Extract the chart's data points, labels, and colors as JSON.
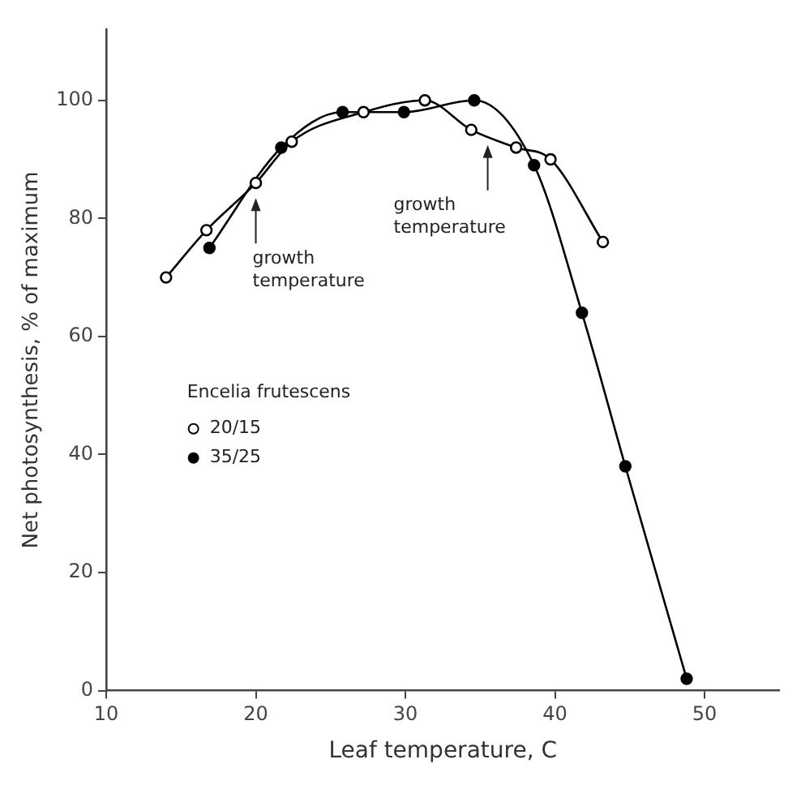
{
  "chart_data": {
    "type": "line",
    "xlabel": "Leaf temperature, C",
    "ylabel": "Net photosynthesis, % of maximum",
    "legend_title": "Encelia frutescens",
    "legend": "left",
    "marker": "circle",
    "grid": false,
    "xlim": [
      10,
      55
    ],
    "xticks": [
      10,
      20,
      30,
      40,
      50
    ],
    "ylim": [
      0,
      112
    ],
    "yticks": [
      0,
      20,
      40,
      60,
      80,
      100
    ],
    "series": [
      {
        "name": "20/15",
        "color": "#000000",
        "x": [
          14.0,
          16.7,
          20.0,
          22.4,
          27.2,
          31.3,
          34.4,
          37.4,
          39.7,
          43.2
        ],
        "values": [
          70,
          78,
          86,
          93,
          98,
          100,
          95,
          92,
          90,
          76
        ]
      },
      {
        "name": "35/25",
        "color": "#000000",
        "x": [
          16.9,
          21.7,
          25.8,
          29.9,
          34.6,
          38.6,
          41.8,
          44.7,
          48.8
        ],
        "values": [
          75,
          92,
          98,
          98,
          100,
          89,
          64,
          38,
          2
        ]
      }
    ],
    "annotations": [
      {
        "text": "growth temperature",
        "x": 20,
        "y": 84
      },
      {
        "text": "growth temperature",
        "x": 35.5,
        "y": 93
      }
    ]
  }
}
